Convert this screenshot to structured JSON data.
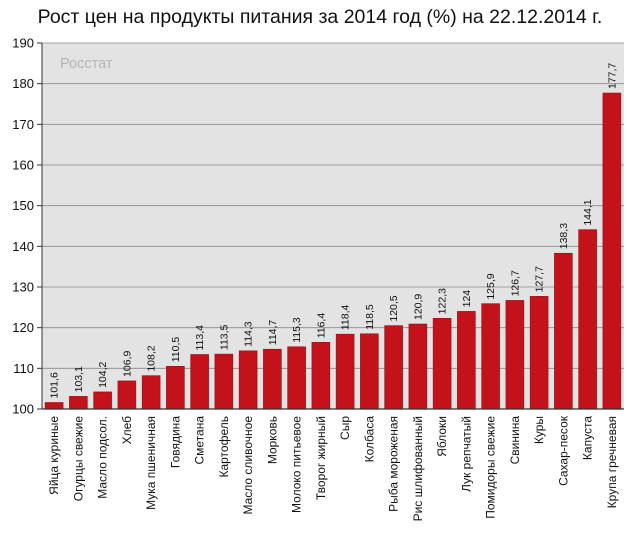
{
  "chart_data": {
    "type": "bar",
    "title": "Рост цен на продукты питания за 2014 год (%) на 22.12.2014 г.",
    "watermark": "Росстат",
    "xlabel": "",
    "ylabel": "",
    "ylim": [
      100,
      190
    ],
    "yticks": [
      100,
      110,
      120,
      130,
      140,
      150,
      160,
      170,
      180,
      190
    ],
    "grid": true,
    "legend": "none",
    "bar_color": "#c4121a",
    "plot_bg": "#e3e3e3",
    "categories": [
      "Яйца куриные",
      "Огурцы свежие",
      "Масло подсол.",
      "Хлеб",
      "Мука пшеничная",
      "Говядина",
      "Сметана",
      "Картофель",
      "Масло сливочное",
      "Морковь",
      "Молоко питьевое",
      "Творог жирный",
      "Сыр",
      "Колбаса",
      "Рыба мороженая",
      "Рис шлифованный",
      "Яблоки",
      "Лук репчатый",
      "Помидоры свежие",
      "Свинина",
      "Куры",
      "Сахар-песок",
      "Капуста",
      "Крупа гречневая"
    ],
    "values": [
      101.6,
      103.1,
      104.2,
      106.9,
      108.2,
      110.5,
      113.4,
      113.5,
      114.3,
      114.7,
      115.3,
      116.4,
      118.4,
      118.5,
      120.5,
      120.9,
      122.3,
      124,
      125.9,
      126.7,
      127.7,
      138.3,
      144.1,
      177.7
    ],
    "value_labels": [
      "101,6",
      "103,1",
      "104,2",
      "106,9",
      "108,2",
      "110,5",
      "113,4",
      "113,5",
      "114,3",
      "114,7",
      "115,3",
      "116,4",
      "118,4",
      "118,5",
      "120,5",
      "120,9",
      "122,3",
      "124",
      "125,9",
      "126,7",
      "127,7",
      "138,3",
      "144,1",
      "177,7"
    ]
  }
}
